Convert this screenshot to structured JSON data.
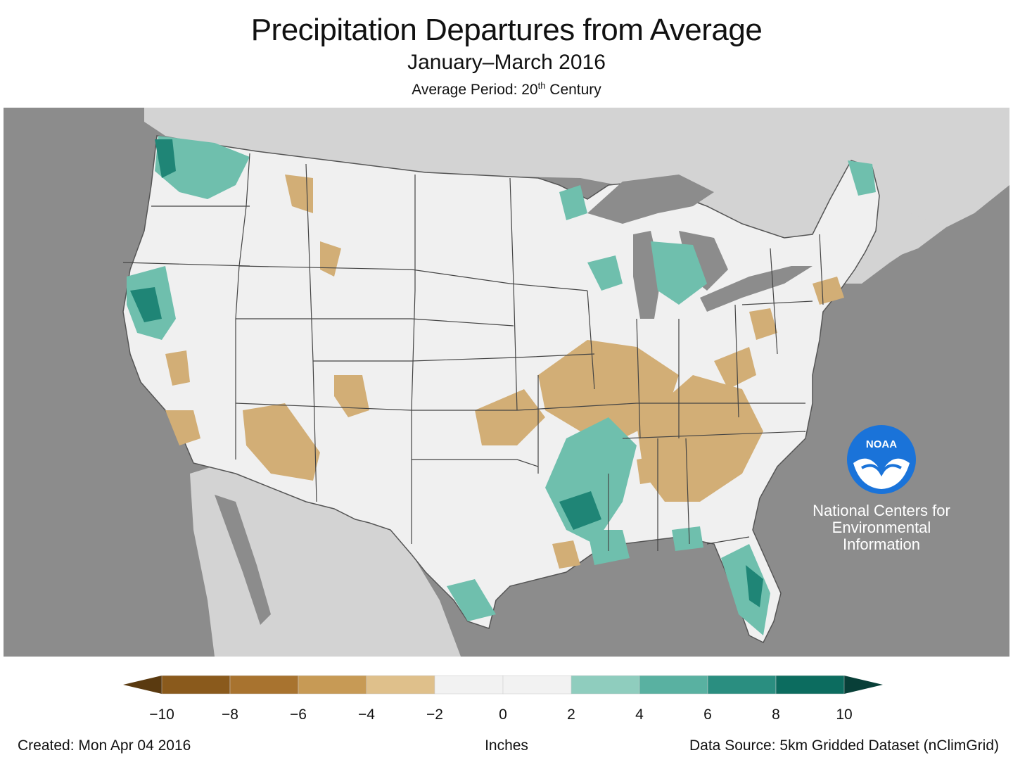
{
  "title": "Precipitation Departures from Average",
  "subtitle": "January–March 2016",
  "average_period_prefix": "Average Period: 20",
  "average_period_sup": "th",
  "average_period_suffix": " Century",
  "logo": {
    "text": "NOAA",
    "org_line1": "National Centers for",
    "org_line2": "Environmental",
    "org_line3": "Information",
    "color": "#1a73d9"
  },
  "legend": {
    "ticks": [
      "−10",
      "−8",
      "−6",
      "−4",
      "−2",
      "0",
      "2",
      "4",
      "6",
      "8",
      "10"
    ],
    "colors": [
      "#8a5a1c",
      "#a8732f",
      "#c79a55",
      "#dfc08b",
      "#f2f2f2",
      "#f2f2f2",
      "#8fcdbe",
      "#59b1a1",
      "#2a8e80",
      "#0c6c5f"
    ],
    "units": "Inches"
  },
  "footer": {
    "created": "Created: Mon Apr 04 2016",
    "source": "Data Source: 5km Gridded Dataset (nClimGrid)"
  },
  "colors": {
    "ocean": "#8c8c8c",
    "land_foreign": "#d3d3d3",
    "land_us": "#f0f0f0",
    "dry": "#d2ae76",
    "wet": "#6fbfad",
    "very_wet": "#1f8576"
  }
}
